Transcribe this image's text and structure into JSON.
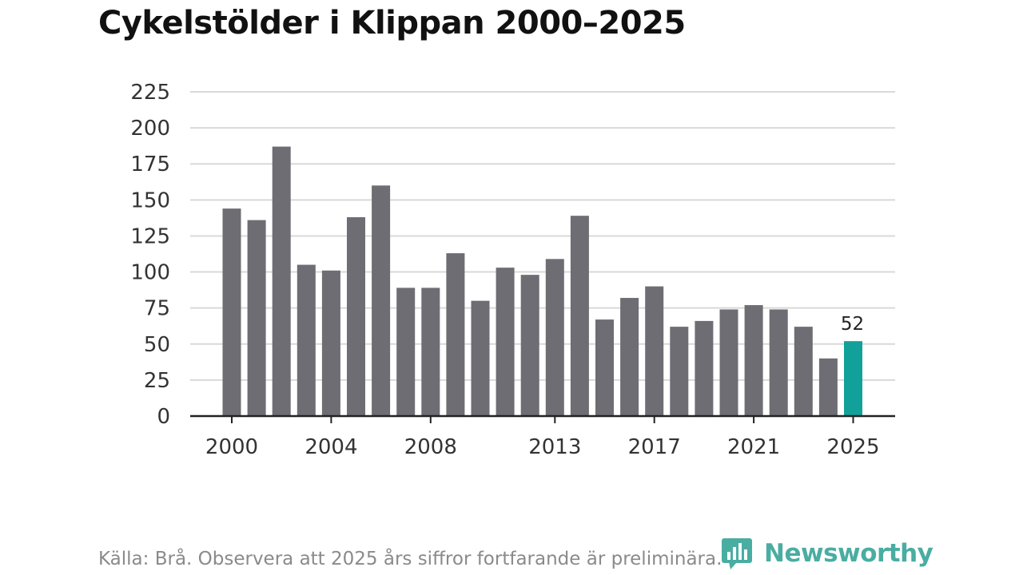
{
  "title": "Cykelstölder i Klippan 2000–2025",
  "source": "Källa: Brå. Observera att 2025 års siffror fortfarande är preliminära.",
  "logo": {
    "text": "Newsworthy",
    "icon": "bar-chart-speech-bubble-icon"
  },
  "colors": {
    "bar": "#6e6d73",
    "highlight": "#12a19a",
    "grid": "#d9d9d9",
    "axis": "#222222",
    "logo": "#3ba79b"
  },
  "chart_data": {
    "type": "bar",
    "title": "Cykelstölder i Klippan 2000–2025",
    "xlabel": "",
    "ylabel": "",
    "ylim": [
      0,
      225
    ],
    "yticks": [
      0,
      25,
      50,
      75,
      100,
      125,
      150,
      175,
      200,
      225
    ],
    "xticks": [
      2000,
      2004,
      2008,
      2013,
      2017,
      2021,
      2025
    ],
    "grid": true,
    "categories": [
      2000,
      2001,
      2002,
      2003,
      2004,
      2005,
      2006,
      2007,
      2008,
      2009,
      2010,
      2011,
      2012,
      2013,
      2014,
      2015,
      2016,
      2017,
      2018,
      2019,
      2020,
      2021,
      2022,
      2023,
      2024,
      2025
    ],
    "values": [
      144,
      136,
      187,
      105,
      101,
      138,
      160,
      89,
      89,
      113,
      80,
      103,
      98,
      109,
      139,
      67,
      82,
      90,
      62,
      66,
      74,
      77,
      74,
      62,
      40,
      52
    ],
    "highlight": {
      "category": 2025,
      "label": "52"
    }
  }
}
